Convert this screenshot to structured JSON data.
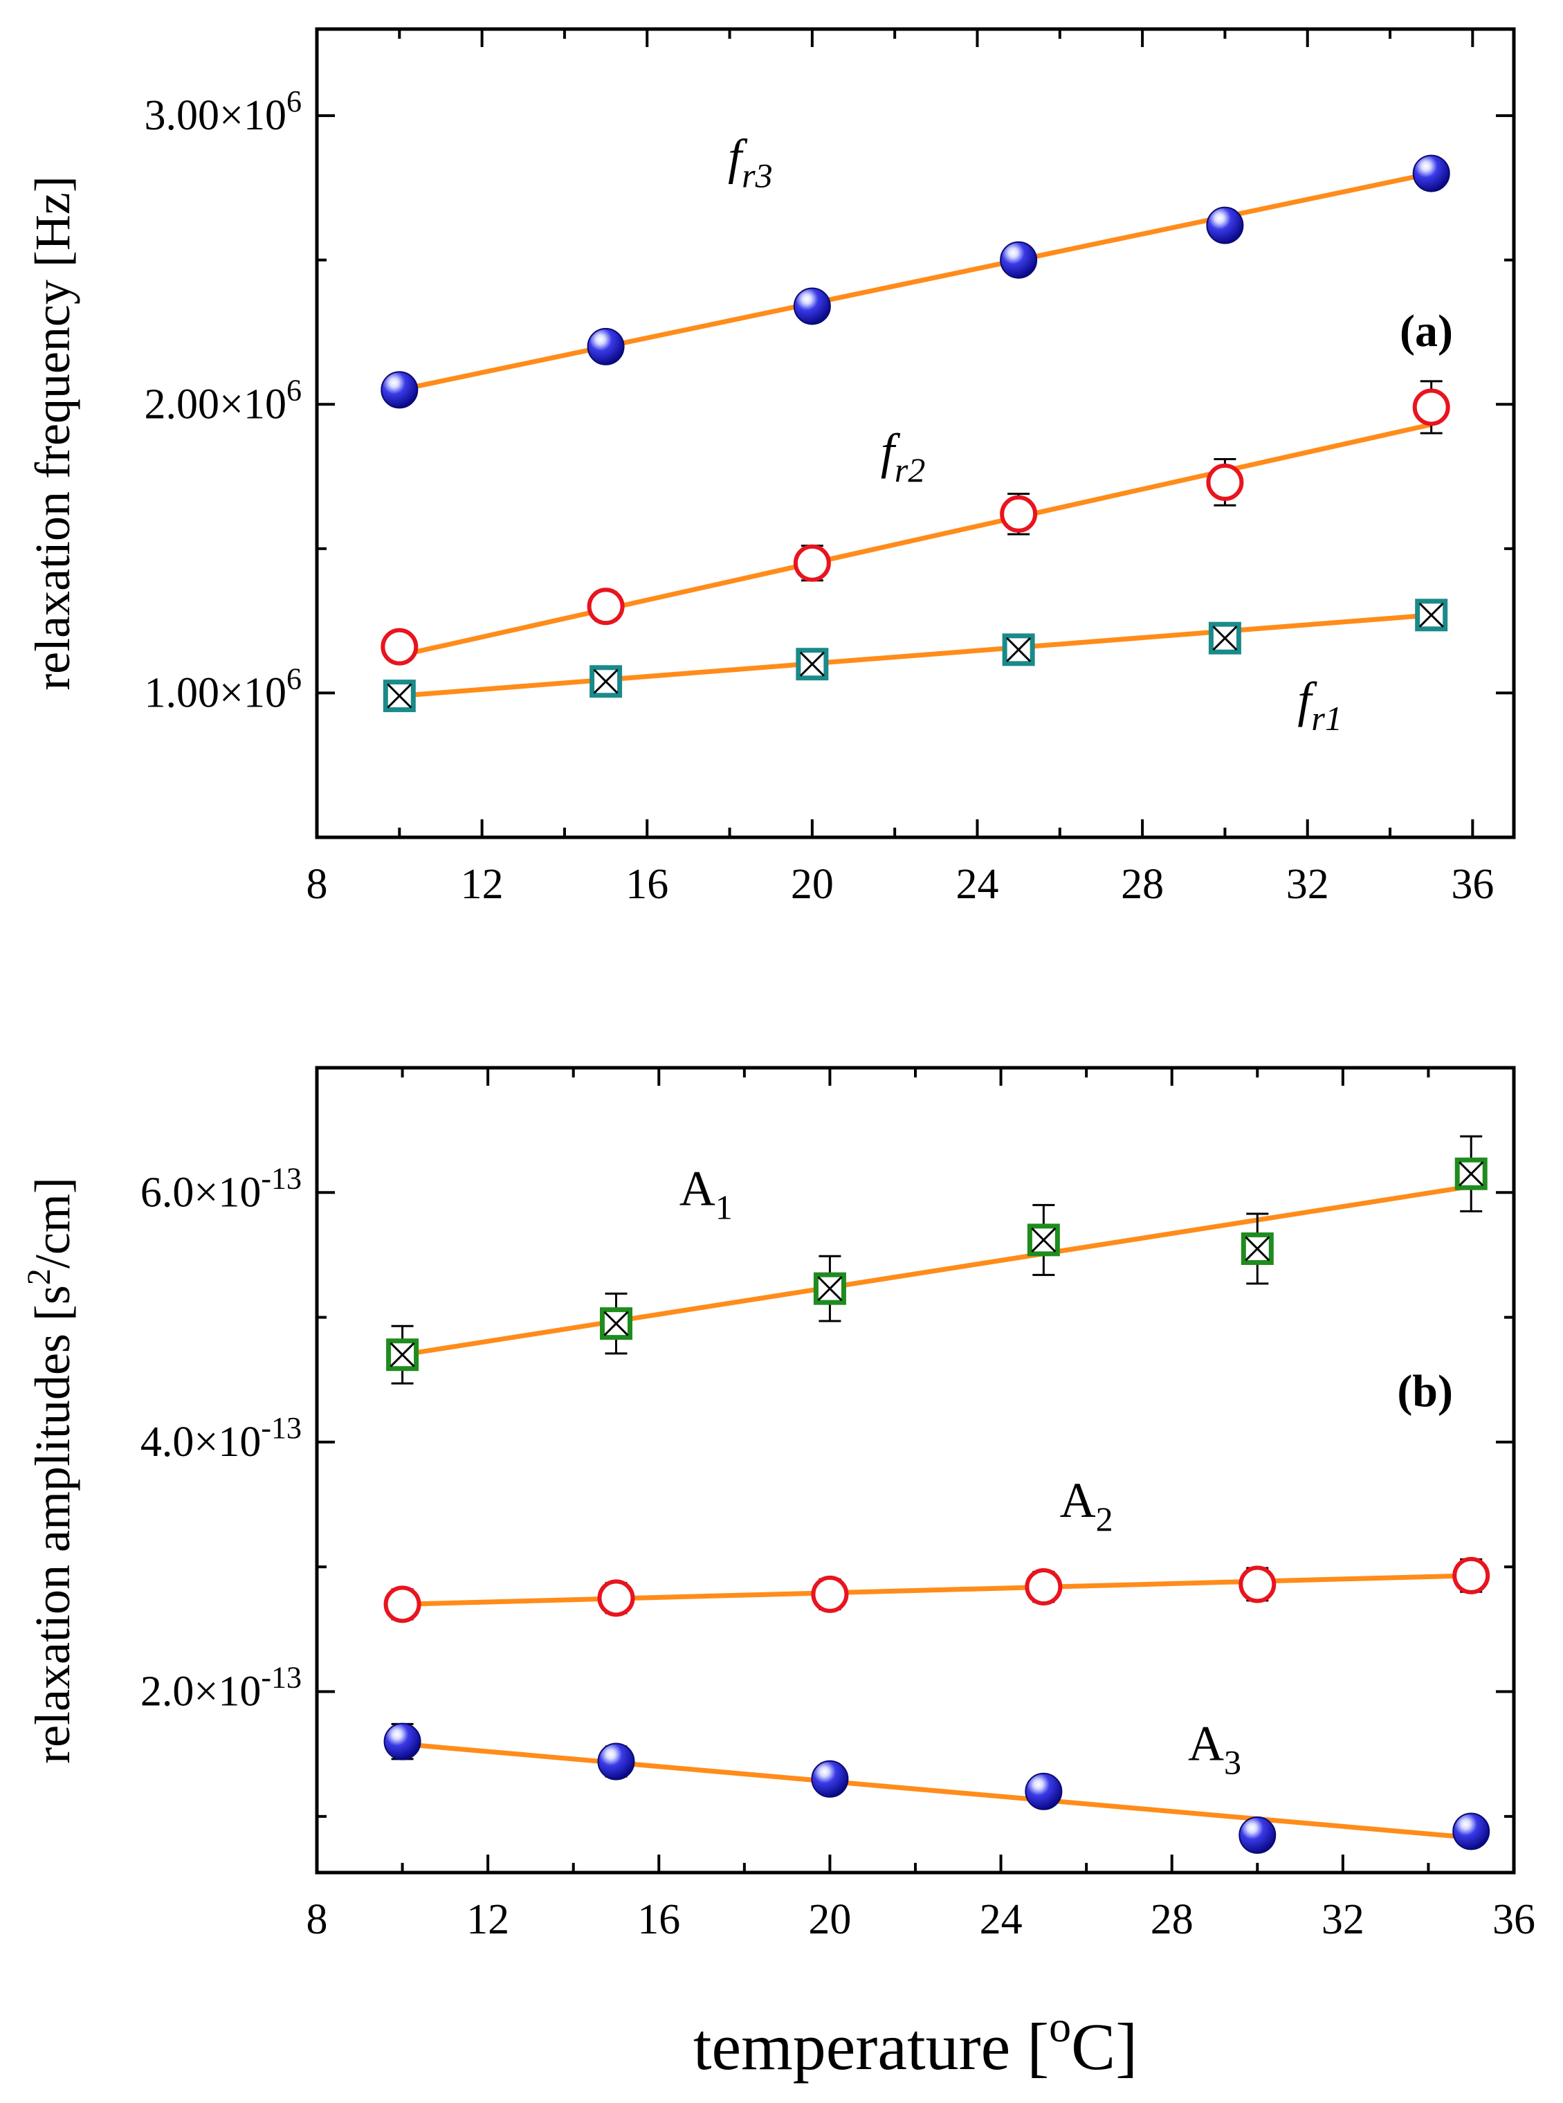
{
  "colors": {
    "fit_line": "#ff8c1a",
    "blue_sphere": "#1f1fcf",
    "red_circle": "#e8141e",
    "teal_square": "#1a8a8a",
    "green_square": "#1e8c1e",
    "axis": "#000000"
  },
  "chart_data": [
    {
      "type": "scatter",
      "panel_label": "(a)",
      "xlabel": "",
      "ylabel": "relaxation frequency [Hz]",
      "xlim": [
        8,
        37
      ],
      "ylim": [
        500000,
        3300000
      ],
      "xticks": [
        8,
        12,
        16,
        20,
        24,
        28,
        32,
        36
      ],
      "xtick_labels": [
        "8",
        "12",
        "16",
        "20",
        "24",
        "28",
        "32",
        "36"
      ],
      "yticks": [
        1000000,
        2000000,
        3000000
      ],
      "ytick_labels": [
        {
          "mantissa": "1.00",
          "times": "×",
          "base": "10",
          "exp": "6"
        },
        {
          "mantissa": "2.00",
          "times": "×",
          "base": "10",
          "exp": "6"
        },
        {
          "mantissa": "3.00",
          "times": "×",
          "base": "10",
          "exp": "6"
        }
      ],
      "series": [
        {
          "name": "fr3",
          "label_base": "f",
          "label_sub": "r3",
          "marker": "sphere",
          "x": [
            10,
            15,
            20,
            25,
            30,
            35
          ],
          "y": [
            2050000,
            2200000,
            2340000,
            2500000,
            2620000,
            2800000
          ],
          "err": [
            0,
            0,
            0,
            0,
            0,
            0
          ],
          "fit": [
            [
              10,
              2050000
            ],
            [
              35,
              2800000
            ]
          ],
          "label_at": [
            18.5,
            2800000
          ]
        },
        {
          "name": "fr2",
          "label_base": "f",
          "label_sub": "r2",
          "marker": "open-circle",
          "x": [
            10,
            15,
            20,
            25,
            30,
            35
          ],
          "y": [
            1160000,
            1300000,
            1450000,
            1620000,
            1730000,
            1990000
          ],
          "err": [
            0,
            50000,
            60000,
            70000,
            80000,
            90000
          ],
          "fit": [
            [
              10,
              1130000
            ],
            [
              35,
              1930000
            ]
          ],
          "label_at": [
            22.2,
            1780000
          ]
        },
        {
          "name": "fr1",
          "label_base": "f",
          "label_sub": "r1",
          "marker": "crossed-square",
          "x": [
            10,
            15,
            20,
            25,
            30,
            35
          ],
          "y": [
            990000,
            1040000,
            1100000,
            1150000,
            1190000,
            1270000
          ],
          "err": [
            0,
            0,
            0,
            0,
            30000,
            40000
          ],
          "fit": [
            [
              10,
              990000
            ],
            [
              35,
              1270000
            ]
          ],
          "label_at": [
            32.3,
            920000
          ]
        }
      ]
    },
    {
      "type": "scatter",
      "panel_label": "(b)",
      "xlabel": "temperature [°C]",
      "xlabel_parts": {
        "text": "temperature [",
        "sup": "o",
        "unit": "C]"
      },
      "ylabel": "relaxation amplitudes [s²/cm]",
      "ylabel_parts": {
        "text": "relaxation amplitudes [s",
        "sup": "2",
        "unit": "/cm]"
      },
      "xlim": [
        8,
        36
      ],
      "ylim": [
        5.5e-14,
        7e-13
      ],
      "xticks": [
        8,
        12,
        16,
        20,
        24,
        28,
        32,
        36
      ],
      "xtick_labels": [
        "8",
        "12",
        "16",
        "20",
        "24",
        "28",
        "32",
        "36"
      ],
      "yticks": [
        2e-13,
        4e-13,
        6e-13
      ],
      "ytick_labels": [
        {
          "mantissa": "2.0",
          "times": "×",
          "base": "10",
          "exp": "-13"
        },
        {
          "mantissa": "4.0",
          "times": "×",
          "base": "10",
          "exp": "-13"
        },
        {
          "mantissa": "6.0",
          "times": "×",
          "base": "10",
          "exp": "-13"
        }
      ],
      "series": [
        {
          "name": "A1",
          "label_base": "A",
          "label_sub": "1",
          "marker": "crossed-square-green",
          "x": [
            10,
            15,
            20,
            25,
            30,
            35
          ],
          "y": [
            4.7e-13,
            4.95e-13,
            5.23e-13,
            5.62e-13,
            5.55e-13,
            6.15e-13
          ],
          "err": [
            2.3e-14,
            2.4e-14,
            2.6e-14,
            2.8e-14,
            2.8e-14,
            3e-14
          ],
          "fit": [
            [
              10,
              4.7e-13
            ],
            [
              35,
              6.05e-13
            ]
          ],
          "label_at": [
            17.1,
            5.9e-13
          ]
        },
        {
          "name": "A2",
          "label_base": "A",
          "label_sub": "2",
          "marker": "open-circle",
          "x": [
            10,
            15,
            20,
            25,
            30,
            35
          ],
          "y": [
            2.7e-13,
            2.75e-13,
            2.78e-13,
            2.84e-13,
            2.86e-13,
            2.93e-13
          ],
          "err": [
            1.2e-14,
            1.2e-14,
            1.2e-14,
            1.2e-14,
            1.3e-14,
            1.3e-14
          ],
          "fit": [
            [
              10,
              2.7e-13
            ],
            [
              35,
              2.93e-13
            ]
          ],
          "label_at": [
            26.0,
            3.4e-13
          ]
        },
        {
          "name": "A3",
          "label_base": "A",
          "label_sub": "3",
          "marker": "sphere",
          "x": [
            10,
            15,
            20,
            25,
            30,
            35
          ],
          "y": [
            1.6e-13,
            1.44e-13,
            1.3e-13,
            1.2e-13,
            8.5e-14,
            8.8e-14
          ],
          "err": [
            1.4e-14,
            1.2e-14,
            0,
            0,
            1e-14,
            0
          ],
          "fit": [
            [
              10,
              1.58e-13
            ],
            [
              35,
              8.3e-14
            ]
          ],
          "label_at": [
            29.0,
            1.45e-13
          ]
        }
      ]
    }
  ]
}
